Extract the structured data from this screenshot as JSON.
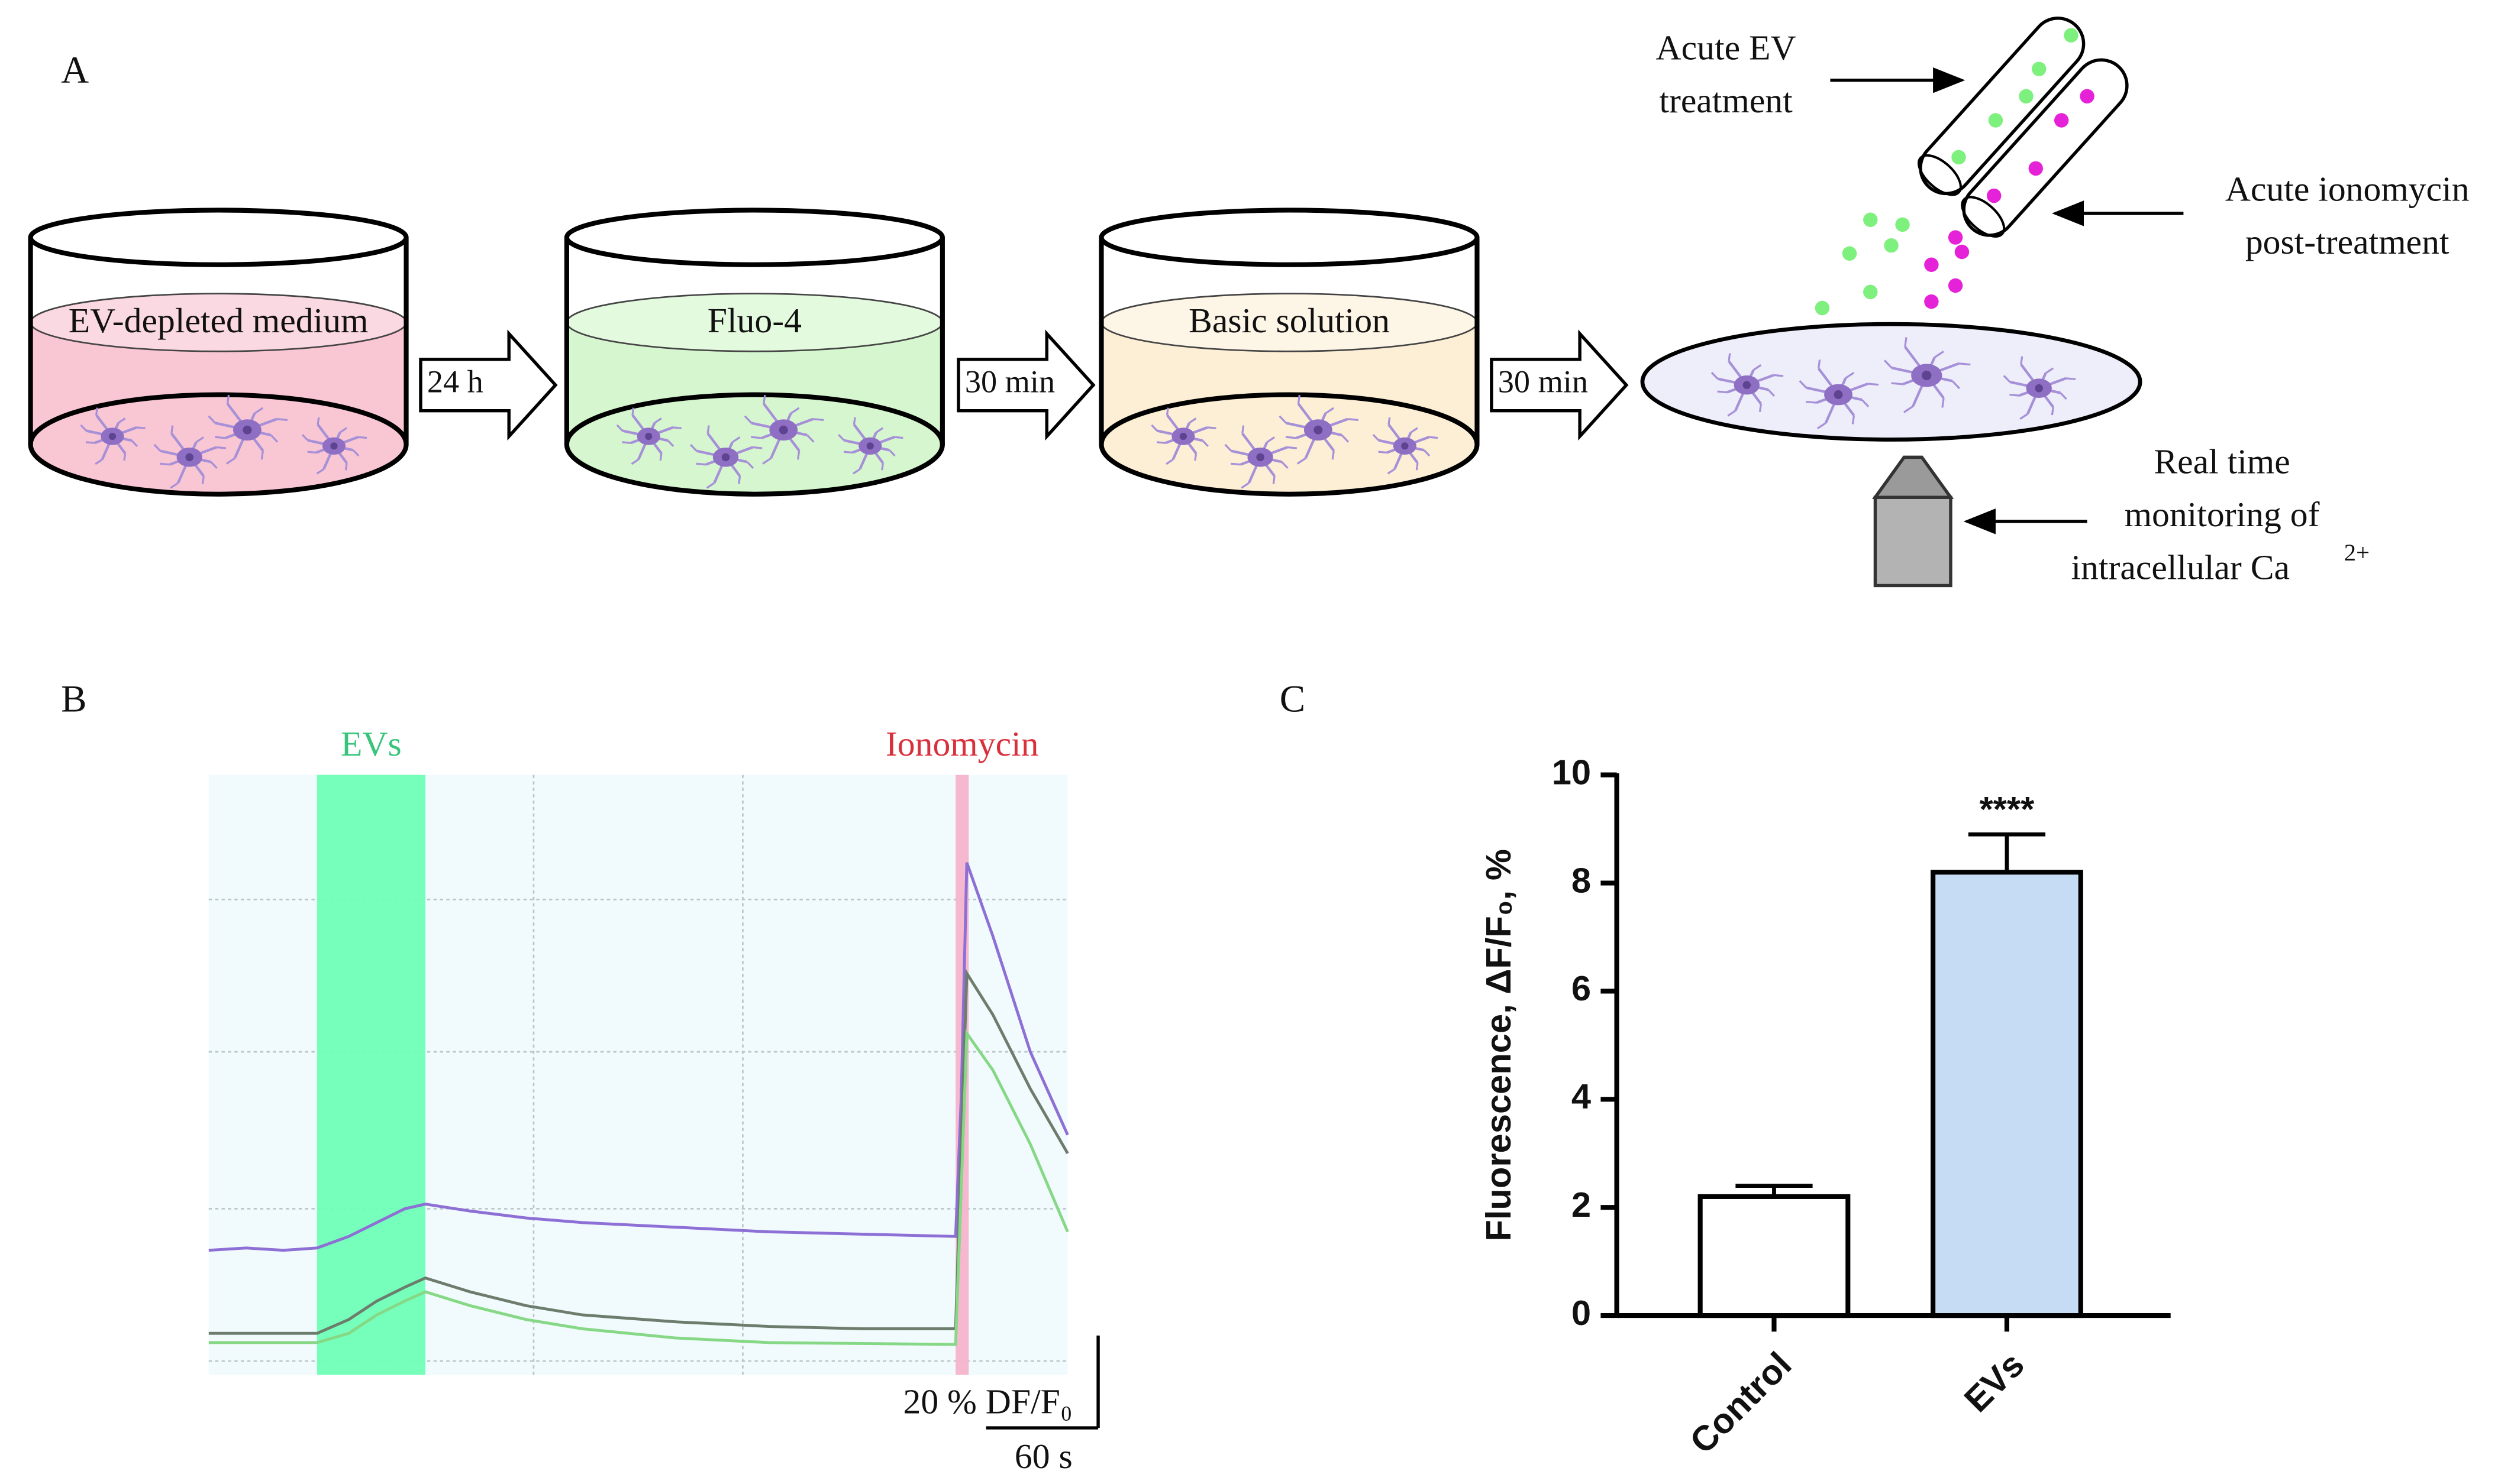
{
  "panel_labels": [
    "A",
    "B",
    "C"
  ],
  "diagram": {
    "dishes": [
      {
        "label": "EV-depleted medium",
        "color": "#f9c6d3",
        "liquid": "#fbd9e2"
      },
      {
        "label": "Fluo-4",
        "color": "#d6f6d0",
        "liquid": "#e4fadf"
      },
      {
        "label": "Basic solution",
        "color": "#fcefd6",
        "liquid": "#fdf5e6"
      }
    ],
    "steps": [
      "24 h",
      "30 min",
      "30 min"
    ],
    "ev_treatment": [
      "Acute EV",
      "treatment"
    ],
    "ionomycin_treatment": [
      "Acute ionomycin",
      "post-treatment"
    ],
    "monitoring": {
      "lines": [
        "Real time",
        "monitoring of",
        "intracellular Ca"
      ],
      "sup": "2+"
    }
  },
  "chart_data": [
    {
      "type": "line",
      "xlim": [
        0,
        460
      ],
      "ylim": [
        0,
        130
      ],
      "xgrid": [
        174,
        286
      ],
      "ygrid": [
        3,
        36,
        70,
        103
      ],
      "bands": [
        {
          "label": "EVs",
          "start": 58,
          "end": 116,
          "color": "#6fffb6",
          "text_color": "#38c47a"
        },
        {
          "label": "Ionomycin",
          "start": 400,
          "end": 407,
          "color": "#f6b4cc",
          "text_color": "#d9303c"
        }
      ],
      "x": [
        0,
        20,
        40,
        58,
        75,
        90,
        105,
        116,
        140,
        170,
        200,
        250,
        300,
        350,
        400,
        403,
        406,
        420,
        440,
        460
      ],
      "series": [
        {
          "color": "#8d6fd6",
          "values": [
            27,
            27.5,
            27,
            27.5,
            30,
            33,
            36,
            37,
            35.5,
            34,
            33,
            32,
            31,
            30.5,
            30,
            60,
            111,
            95,
            70,
            52
          ]
        },
        {
          "color": "#6d7d6d",
          "values": [
            9,
            9,
            9,
            9,
            12,
            16,
            19,
            21,
            18,
            15,
            13,
            11.5,
            10.5,
            10,
            10,
            50,
            87,
            78,
            62,
            48
          ]
        },
        {
          "color": "#86d886",
          "values": [
            7,
            7,
            7,
            7,
            9,
            13,
            16,
            18,
            15,
            12,
            10,
            8,
            7,
            6.8,
            6.6,
            40,
            74,
            66,
            50,
            31
          ]
        }
      ],
      "scalebar": {
        "y": {
          "value": 20,
          "label": "20 % DF/F₀"
        },
        "x": {
          "value": 60,
          "label": "60 s"
        }
      }
    },
    {
      "type": "bar",
      "ylabel": "Fluorescence,  ΔF/F₀, %",
      "categories": [
        "Control",
        "EVs"
      ],
      "values": [
        2.2,
        8.2
      ],
      "errors": [
        0.2,
        0.7
      ],
      "colors": [
        "#ffffff",
        "#c6dcf5"
      ],
      "ylim": [
        0,
        10
      ],
      "yticks": [
        0,
        2,
        4,
        6,
        8,
        10
      ],
      "annotation": "****"
    }
  ]
}
